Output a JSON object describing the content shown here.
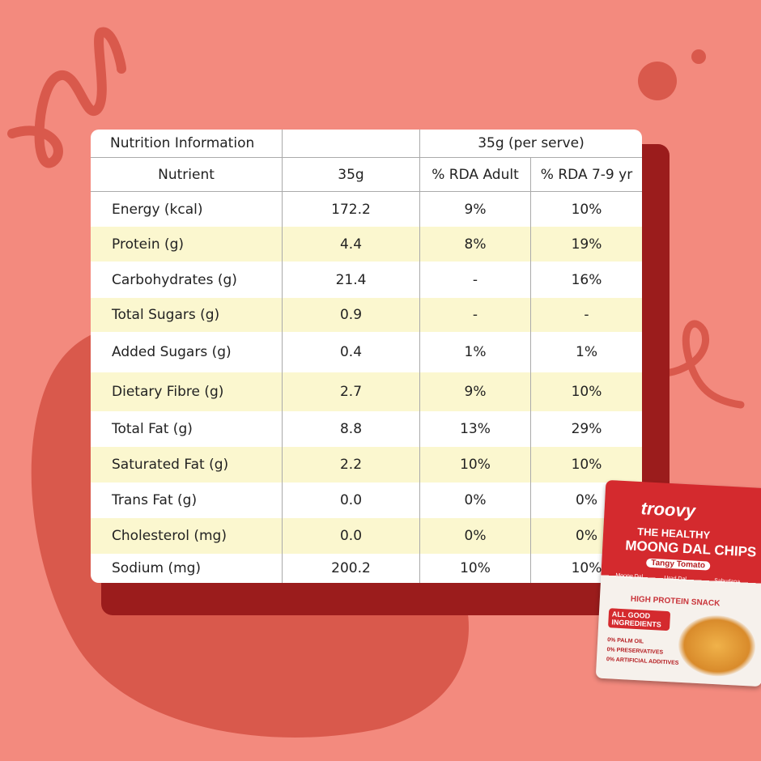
{
  "table": {
    "title": "Nutrition Information",
    "serving": "35g (per serve)",
    "columns": [
      "Nutrient",
      "35g",
      "% RDA Adult",
      "% RDA 7-9 yr"
    ],
    "rows": [
      [
        "Energy (kcal)",
        "172.2",
        "9%",
        "10%"
      ],
      [
        "Protein (g)",
        "4.4",
        "8%",
        "19%"
      ],
      [
        "Carbohydrates (g)",
        "21.4",
        "-",
        "16%"
      ],
      [
        "Total Sugars (g)",
        "0.9",
        "-",
        "-"
      ],
      [
        "Added Sugars (g)",
        "0.4",
        "1%",
        "1%"
      ],
      [
        "Dietary Fibre (g)",
        "2.7",
        "9%",
        "10%"
      ],
      [
        "Total Fat (g)",
        "8.8",
        "13%",
        "29%"
      ],
      [
        "Saturated Fat (g)",
        "2.2",
        "10%",
        "10%"
      ],
      [
        "Trans Fat (g)",
        "0.0",
        "0%",
        "0%"
      ],
      [
        "Cholesterol (mg)",
        "0.0",
        "0%",
        "0%"
      ],
      [
        "Sodium (mg)",
        "200.2",
        "10%",
        "10%"
      ]
    ]
  },
  "package": {
    "brand": "troovy",
    "tagline": "THE HEALTHY",
    "product": "MOONG DAL CHIPS",
    "flavour": "Tangy Tomato",
    "ingredients": [
      "Moong Dal",
      "Urad Dal",
      "Sabudana"
    ],
    "claim": "HIGH PROTEIN SNACK",
    "badge": "ALL GOOD INGREDIENTS",
    "points": [
      "0% PALM OIL",
      "0% PRESERVATIVES",
      "0% ARTIFICIAL ADDITIVES"
    ]
  }
}
